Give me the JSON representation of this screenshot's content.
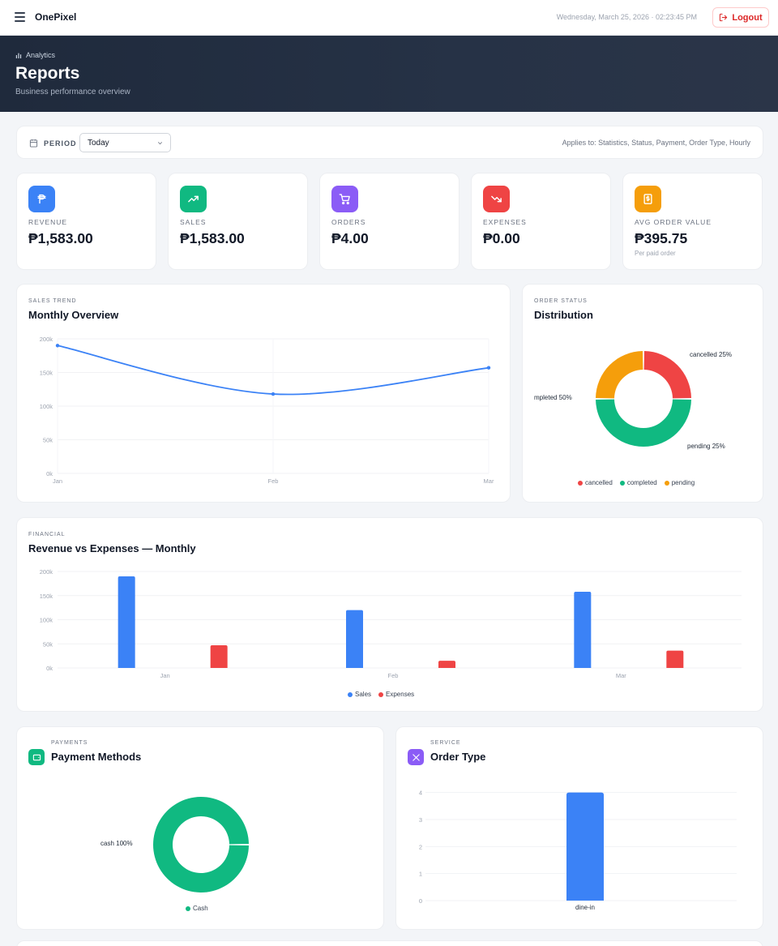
{
  "header": {
    "brand": "OnePixel",
    "datetime": "Wednesday, March 25, 2026 · 02:23:45 PM",
    "logout_label": "Logout"
  },
  "hero": {
    "breadcrumb": "Analytics",
    "title": "Reports",
    "subtitle": "Business performance overview"
  },
  "filter": {
    "period_label": "PERIOD",
    "period_value": "Today",
    "applies_note": "Applies to: Statistics, Status, Payment, Order Type, Hourly"
  },
  "stats": [
    {
      "label": "REVENUE",
      "value": "₱1,583.00",
      "icon": "peso-icon",
      "color": "#3b82f6"
    },
    {
      "label": "SALES",
      "value": "₱1,583.00",
      "icon": "trending-up-icon",
      "color": "#10b981"
    },
    {
      "label": "ORDERS",
      "value": "₱4.00",
      "icon": "cart-icon",
      "color": "#8b5cf6"
    },
    {
      "label": "EXPENSES",
      "value": "₱0.00",
      "icon": "trending-down-icon",
      "color": "#ef4444"
    },
    {
      "label": "AVG ORDER VALUE",
      "value": "₱395.75",
      "note": "Per paid order",
      "icon": "receipt-icon",
      "color": "#f59e0b"
    }
  ],
  "sales_trend": {
    "overline": "SALES TREND",
    "title": "Monthly Overview"
  },
  "order_status": {
    "overline": "ORDER STATUS",
    "title": "Distribution"
  },
  "financial": {
    "overline": "FINANCIAL",
    "title": "Revenue vs Expenses — Monthly"
  },
  "payments": {
    "overline": "PAYMENTS",
    "title": "Payment Methods"
  },
  "service": {
    "overline": "SERVICE",
    "title": "Order Type"
  },
  "chart_data": [
    {
      "type": "line",
      "x": [
        "Jan",
        "Feb",
        "Mar"
      ],
      "series": [
        {
          "values": [
            190000,
            118000,
            157000
          ],
          "color": "#3b82f6"
        }
      ],
      "yticks": [
        "0k",
        "50k",
        "100k",
        "150k",
        "200k"
      ],
      "ylim": [
        0,
        200000
      ],
      "grid": true
    },
    {
      "type": "pie",
      "donut": true,
      "slices": [
        {
          "label": "cancelled",
          "value": 25,
          "display": "cancelled 25%",
          "color": "#ef4444"
        },
        {
          "label": "completed",
          "value": 50,
          "display": "mpleted 50%",
          "color": "#10b981"
        },
        {
          "label": "pending",
          "value": 25,
          "display": "pending 25%",
          "color": "#f59e0b"
        }
      ],
      "legend": "bottom"
    },
    {
      "type": "bar",
      "categories": [
        "Jan",
        "Feb",
        "Mar"
      ],
      "series": [
        {
          "name": "Sales",
          "values": [
            190000,
            120000,
            158000
          ],
          "color": "#3b82f6"
        },
        {
          "name": "Expenses",
          "values": [
            47000,
            15000,
            36000
          ],
          "color": "#ef4444"
        }
      ],
      "yticks": [
        "0k",
        "50k",
        "100k",
        "150k",
        "200k"
      ],
      "ylim": [
        0,
        200000
      ],
      "legend": "bottom"
    },
    {
      "type": "pie",
      "donut": true,
      "slices": [
        {
          "label": "Cash",
          "value": 100,
          "display": "cash 100%",
          "color": "#10b981"
        }
      ],
      "legend": "bottom"
    },
    {
      "type": "bar",
      "categories": [
        "dine-in"
      ],
      "values": [
        4
      ],
      "color": "#3b82f6",
      "yticks": [
        "0",
        "1",
        "2",
        "3",
        "4"
      ],
      "ylim": [
        0,
        4.2
      ]
    }
  ]
}
